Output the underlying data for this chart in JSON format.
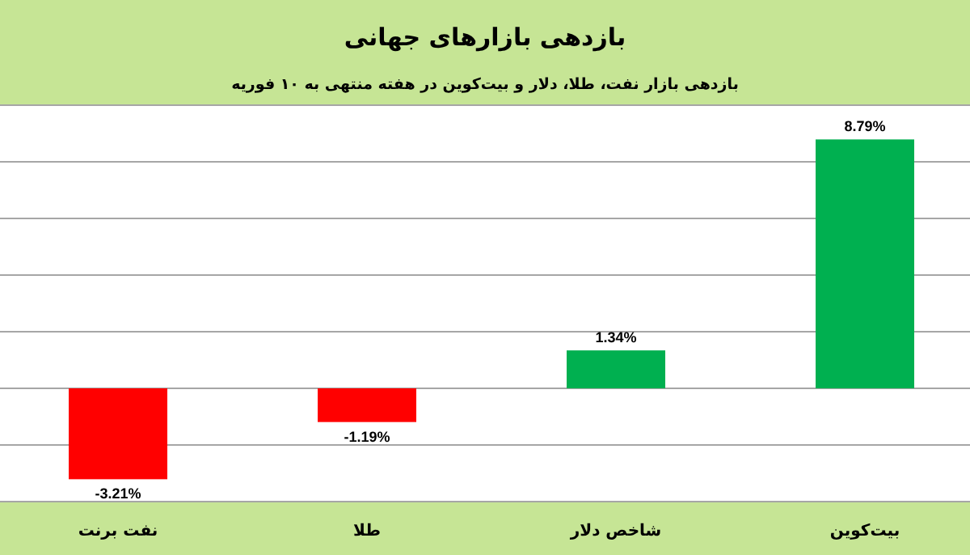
{
  "chart_data": {
    "type": "bar",
    "title": "بازدهی بازارهای جهانی",
    "subtitle": "بازدهی بازار نفت، طلا، دلار و بیت‌کوین در هفته منتهی به ۱۰ فوریه",
    "categories": [
      "نفت برنت",
      "طلا",
      "شاخص دلار",
      "بیت‌کوین"
    ],
    "values": [
      -3.21,
      -1.19,
      1.34,
      8.79
    ],
    "colors": [
      "#ff0000",
      "#ff0000",
      "#00b050",
      "#00b050"
    ],
    "value_labels": [
      "-3.21%",
      "-1.19%",
      "1.34%",
      "8.79%"
    ],
    "ylim": [
      -4,
      10
    ],
    "yticks": [
      {
        "value": -4,
        "label": null
      },
      {
        "value": -2,
        "label": null
      },
      {
        "value": 0,
        "label": null
      },
      {
        "value": 2,
        "label": null
      },
      {
        "value": 4,
        "label": null
      },
      {
        "value": 6,
        "label": null
      },
      {
        "value": 8,
        "label": null
      },
      {
        "value": 10,
        "label": null
      }
    ],
    "grid": "y",
    "tick_labels": "x"
  }
}
